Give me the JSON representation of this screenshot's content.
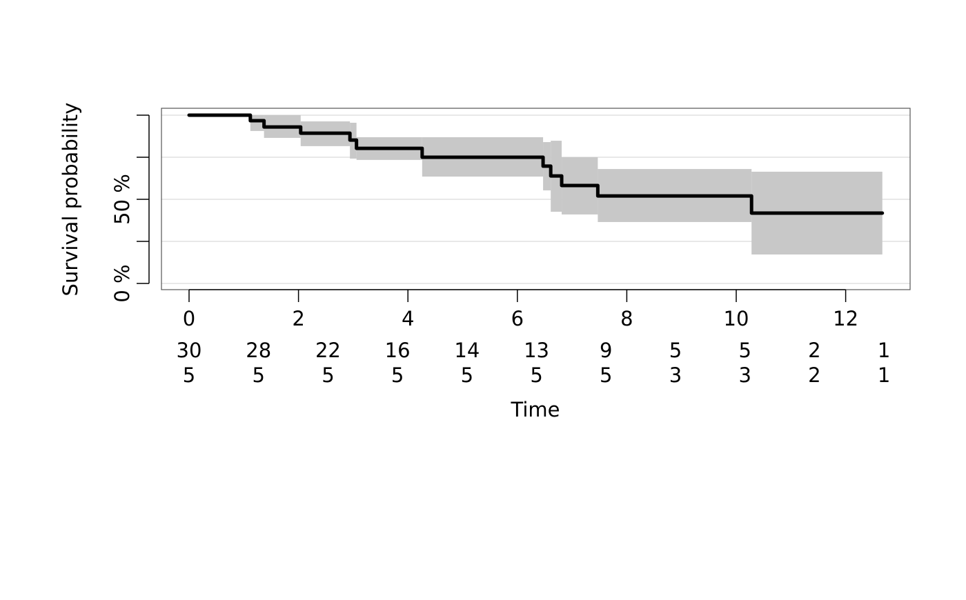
{
  "chart_data": {
    "type": "line",
    "subtype": "kaplan-meier step with confidence band",
    "title": "",
    "xlabel": "Time",
    "ylabel": "Survival probability",
    "xlim": [
      0,
      12.7
    ],
    "ylim": [
      0,
      100
    ],
    "x_ticks": [
      0,
      2,
      4,
      6,
      8,
      10,
      12
    ],
    "y_ticks": [
      0,
      25,
      50,
      75,
      100
    ],
    "y_tick_labels": [
      "0 %",
      "",
      "50 %",
      "",
      ""
    ],
    "grid": true,
    "colors": {
      "curve": "#000000",
      "band": "#c8c8c8",
      "grid": "#e0e0e0"
    },
    "steps": [
      {
        "t0": 0,
        "t1": 1.12,
        "surv": 100,
        "lower": 100,
        "upper": 100
      },
      {
        "t0": 1.12,
        "t1": 1.37,
        "surv": 96.7,
        "lower": 90.6,
        "upper": 100
      },
      {
        "t0": 1.37,
        "t1": 2.04,
        "surv": 93.0,
        "lower": 86.5,
        "upper": 100
      },
      {
        "t0": 2.04,
        "t1": 2.94,
        "surv": 89.3,
        "lower": 81.6,
        "upper": 96.3
      },
      {
        "t0": 2.94,
        "t1": 3.06,
        "surv": 85.2,
        "lower": 74.2,
        "upper": 95.5
      },
      {
        "t0": 3.06,
        "t1": 4.26,
        "surv": 80.3,
        "lower": 73.4,
        "upper": 86.9
      },
      {
        "t0": 4.26,
        "t1": 6.47,
        "surv": 75.0,
        "lower": 63.5,
        "upper": 86.9
      },
      {
        "t0": 6.47,
        "t1": 6.61,
        "surv": 69.7,
        "lower": 55.3,
        "upper": 84.0
      },
      {
        "t0": 6.61,
        "t1": 6.81,
        "surv": 63.9,
        "lower": 42.6,
        "upper": 84.8
      },
      {
        "t0": 6.81,
        "t1": 7.47,
        "surv": 58.2,
        "lower": 41.0,
        "upper": 75.0
      },
      {
        "t0": 7.47,
        "t1": 10.28,
        "surv": 52.0,
        "lower": 36.5,
        "upper": 68.0
      },
      {
        "t0": 10.28,
        "t1": 12.67,
        "surv": 41.8,
        "lower": 17.2,
        "upper": 66.4
      }
    ],
    "risk_table": {
      "times": [
        0,
        1.27,
        2.54,
        3.81,
        5.08,
        6.35,
        7.62,
        8.89,
        10.16,
        11.43,
        12.7
      ],
      "rows": [
        [
          "30",
          "28",
          "22",
          "16",
          "14",
          "13",
          "9",
          "5",
          "5",
          "2",
          "1"
        ],
        [
          "5",
          "5",
          "5",
          "5",
          "5",
          "5",
          "5",
          "3",
          "3",
          "2",
          "1"
        ]
      ]
    }
  }
}
